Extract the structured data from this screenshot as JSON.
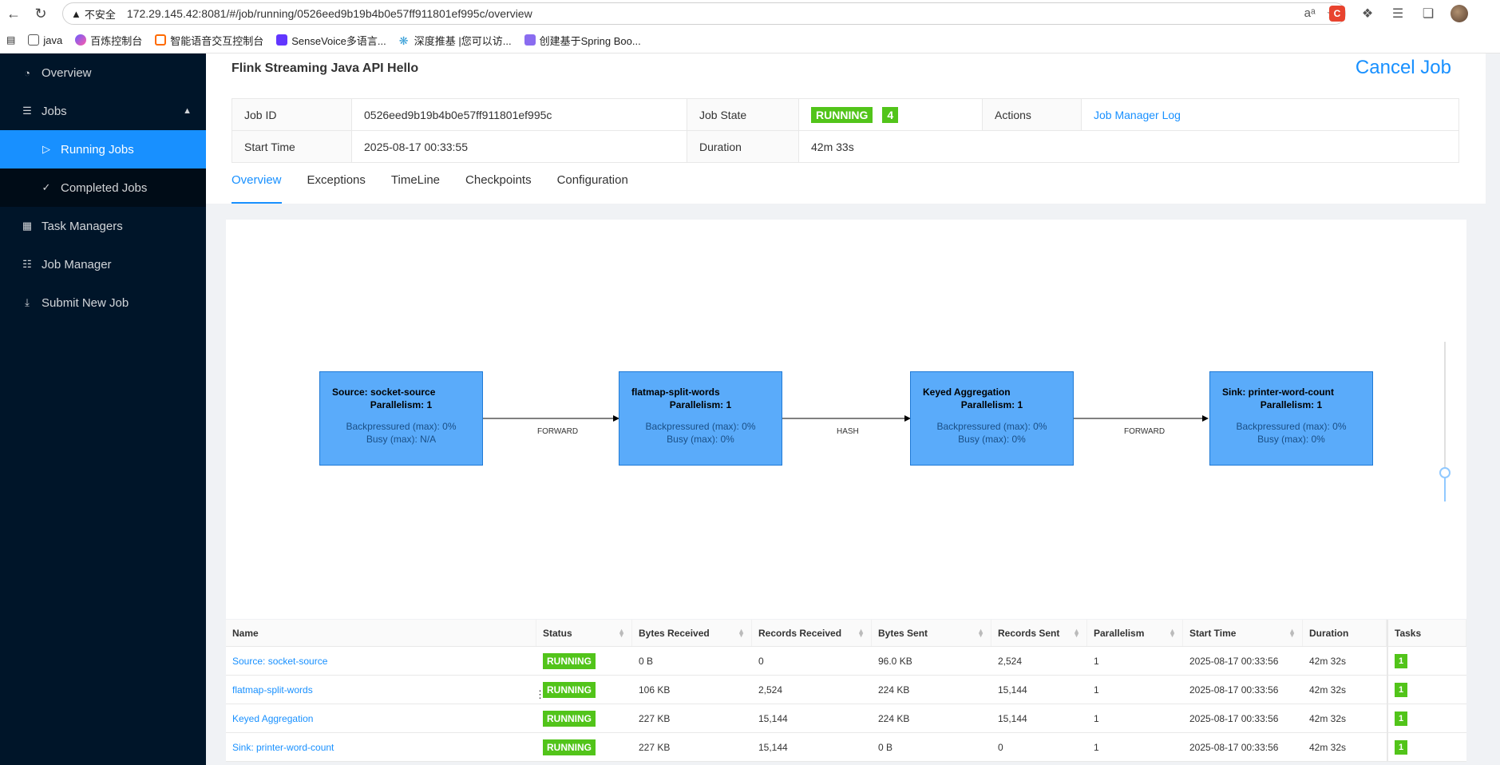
{
  "browser": {
    "security_label": "不安全",
    "url": "172.29.145.42:8081/#/job/running/0526eed9b19b4b0e57ff911801ef995c/overview",
    "bookmarks": [
      {
        "label": "java"
      },
      {
        "label": "百炼控制台"
      },
      {
        "label": "智能语音交互控制台"
      },
      {
        "label": "SenseVoice多语言..."
      },
      {
        "label": "深度推基 |您可以访..."
      },
      {
        "label": "创建基于Spring Boo..."
      }
    ]
  },
  "sidebar": {
    "items": [
      {
        "label": "Overview",
        "icon": "dashboard-icon"
      },
      {
        "label": "Jobs",
        "icon": "list-icon"
      },
      {
        "label": "Running Jobs",
        "icon": "play-circle-icon"
      },
      {
        "label": "Completed Jobs",
        "icon": "check-circle-icon"
      },
      {
        "label": "Task Managers",
        "icon": "schedule-icon"
      },
      {
        "label": "Job Manager",
        "icon": "build-icon"
      },
      {
        "label": "Submit New Job",
        "icon": "upload-icon"
      }
    ]
  },
  "job": {
    "title": "Flink Streaming Java API Hello",
    "cancel_label": "Cancel Job",
    "id_label": "Job ID",
    "id": "0526eed9b19b4b0e57ff911801ef995c",
    "state_label": "Job State",
    "state": "RUNNING",
    "state_count": "4",
    "actions_label": "Actions",
    "actions_link": "Job Manager Log",
    "start_label": "Start Time",
    "start": "2025-08-17 00:33:55",
    "duration_label": "Duration",
    "duration": "42m 33s"
  },
  "tabs": [
    "Overview",
    "Exceptions",
    "TimeLine",
    "Checkpoints",
    "Configuration"
  ],
  "graph": {
    "nodes": [
      {
        "name": "Source: socket-source",
        "parallelism": "Parallelism: 1",
        "backpressure": "Backpressured (max): 0%",
        "busy": "Busy (max): N/A"
      },
      {
        "name": "flatmap-split-words",
        "parallelism": "Parallelism: 1",
        "backpressure": "Backpressured (max): 0%",
        "busy": "Busy (max): 0%"
      },
      {
        "name": "Keyed Aggregation",
        "parallelism": "Parallelism: 1",
        "backpressure": "Backpressured (max): 0%",
        "busy": "Busy (max): 0%"
      },
      {
        "name": "Sink: printer-word-count",
        "parallelism": "Parallelism: 1",
        "backpressure": "Backpressured (max): 0%",
        "busy": "Busy (max): 0%"
      }
    ],
    "edges": [
      "FORWARD",
      "HASH",
      "FORWARD"
    ]
  },
  "vertices": {
    "headers": [
      "Name",
      "Status",
      "Bytes Received",
      "Records Received",
      "Bytes Sent",
      "Records Sent",
      "Parallelism",
      "Start Time",
      "Duration",
      "Tasks"
    ],
    "rows": [
      {
        "name": "Source: socket-source",
        "status": "RUNNING",
        "bytes_received": "0 B",
        "records_received": "0",
        "bytes_sent": "96.0 KB",
        "records_sent": "2,524",
        "parallelism": "1",
        "start": "2025-08-17 00:33:56",
        "duration": "42m 32s",
        "tasks": "1"
      },
      {
        "name": "flatmap-split-words",
        "status": "RUNNING",
        "bytes_received": "106 KB",
        "records_received": "2,524",
        "bytes_sent": "224 KB",
        "records_sent": "15,144",
        "parallelism": "1",
        "start": "2025-08-17 00:33:56",
        "duration": "42m 32s",
        "tasks": "1"
      },
      {
        "name": "Keyed Aggregation",
        "status": "RUNNING",
        "bytes_received": "227 KB",
        "records_received": "15,144",
        "bytes_sent": "224 KB",
        "records_sent": "15,144",
        "parallelism": "1",
        "start": "2025-08-17 00:33:56",
        "duration": "42m 32s",
        "tasks": "1"
      },
      {
        "name": "Sink: printer-word-count",
        "status": "RUNNING",
        "bytes_received": "227 KB",
        "records_received": "15,144",
        "bytes_sent": "0 B",
        "records_sent": "0",
        "parallelism": "1",
        "start": "2025-08-17 00:33:56",
        "duration": "42m 32s",
        "tasks": "1"
      }
    ]
  },
  "colors": {
    "accent": "#1890ff",
    "sidebar_bg": "#001529",
    "running": "#52c41a",
    "node_fill": "#5aabfa"
  }
}
